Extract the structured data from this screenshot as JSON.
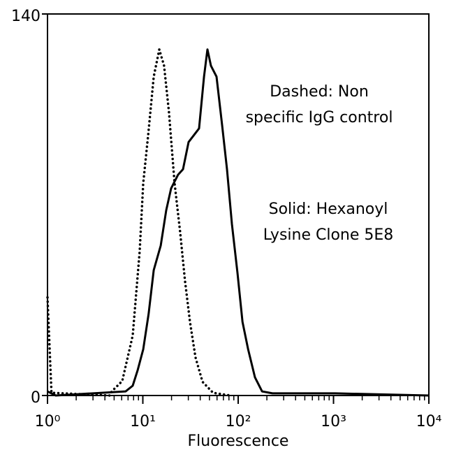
{
  "chart_data": {
    "type": "line",
    "xlabel": "Fluorescence",
    "xlog": true,
    "xlim": [
      1,
      10000
    ],
    "ylim": [
      0,
      140
    ],
    "xticks": [
      {
        "value": 1,
        "label": "10⁰"
      },
      {
        "value": 10,
        "label": "10¹"
      },
      {
        "value": 100,
        "label": "10²"
      },
      {
        "value": 1000,
        "label": "10³"
      },
      {
        "value": 10000,
        "label": "10⁴"
      }
    ],
    "xminorticks": [
      2,
      3,
      4,
      5,
      6,
      7,
      8,
      9,
      20,
      30,
      40,
      50,
      60,
      70,
      80,
      90,
      200,
      300,
      400,
      500,
      600,
      700,
      800,
      900,
      2000,
      3000,
      4000,
      5000,
      6000,
      7000,
      8000,
      9000
    ],
    "yticks": [
      0,
      140
    ],
    "annotations": [
      {
        "lines": [
          "Dashed: Non",
          "specific IgG control"
        ]
      },
      {
        "lines": [
          "Solid: Hexanoyl",
          "Lysine Clone 5E8"
        ]
      }
    ],
    "series": [
      {
        "style": "dashed",
        "color": "#000000",
        "x": [
          1,
          1.1,
          4.5,
          4.72,
          6.08,
          7.83,
          9.27,
          10.1,
          11.4,
          13.0,
          14.9,
          16.7,
          18.8,
          21.5,
          24.6,
          27.7,
          31.2,
          35.7,
          42.3,
          54.5,
          83
        ],
        "values": [
          36,
          1,
          0,
          1.5,
          5.3,
          22,
          53,
          78,
          96,
          117,
          127,
          121,
          104,
          78,
          60,
          42,
          27,
          14,
          5,
          1,
          0
        ]
      },
      {
        "style": "solid",
        "color": "#000000",
        "x": [
          1,
          1.22,
          6.6,
          7.83,
          8.81,
          10.1,
          11.5,
          13.0,
          15.4,
          17.6,
          19.8,
          23.4,
          26.4,
          30.2,
          38.9,
          43.8,
          47.6,
          51.8,
          59.3,
          67.9,
          76.4,
          85.9,
          98.4,
          111,
          127,
          150,
          178,
          229,
          1042,
          10000
        ],
        "values": [
          1.5,
          0,
          1.5,
          3.6,
          9.2,
          17,
          30,
          46,
          55,
          68,
          76,
          81,
          83,
          93,
          98,
          117,
          127,
          121,
          117,
          99,
          83,
          63,
          45,
          27,
          17,
          6.7,
          1.5,
          0.8,
          0.8,
          0
        ]
      }
    ]
  }
}
